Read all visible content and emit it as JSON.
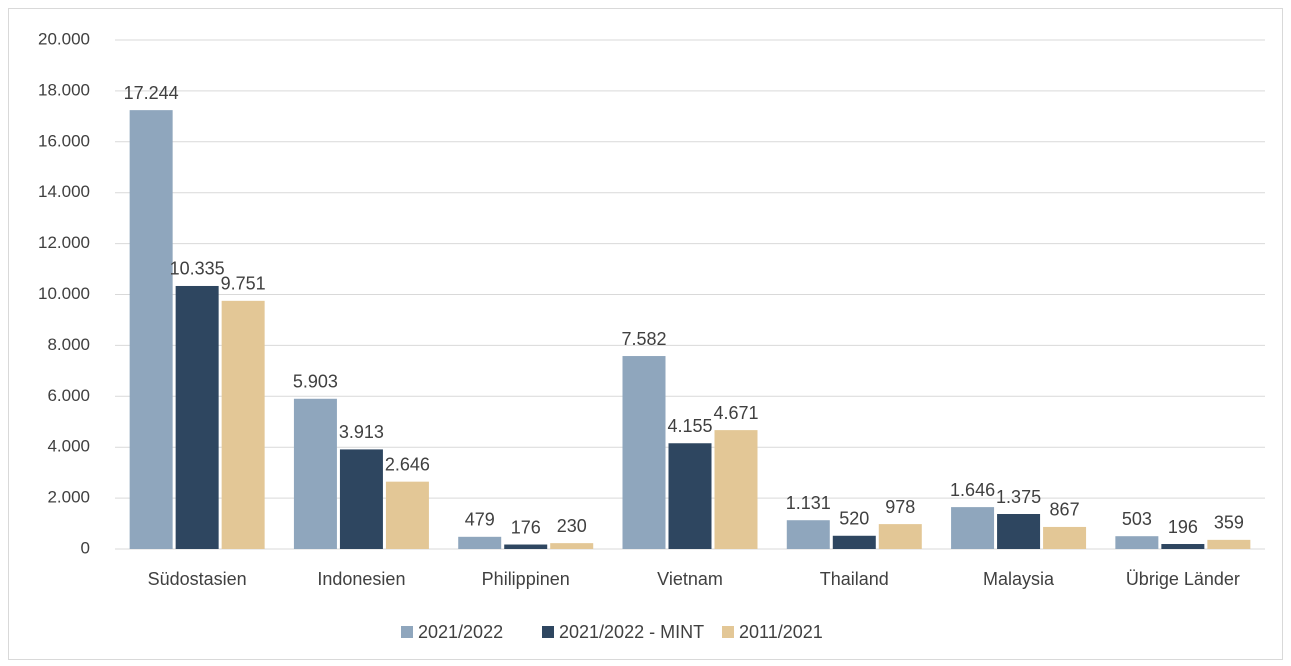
{
  "chart_data": {
    "type": "bar",
    "categories": [
      "Südostasien",
      "Indonesien",
      "Philippinen",
      "Vietnam",
      "Thailand",
      "Malaysia",
      "Übrige Länder"
    ],
    "series": [
      {
        "name": "2021/2022",
        "color": "#8fa6bd",
        "values": [
          17244,
          5903,
          479,
          7582,
          1131,
          1646,
          503
        ],
        "value_labels": [
          "17.244",
          "5.903",
          "479",
          "7.582",
          "1.131",
          "1.646",
          "503"
        ]
      },
      {
        "name": "2021/2022 - MINT",
        "color": "#2e4660",
        "values": [
          10335,
          3913,
          176,
          4155,
          520,
          1375,
          196
        ],
        "value_labels": [
          "10.335",
          "3.913",
          "176",
          "4.155",
          "520",
          "1.375",
          "196"
        ]
      },
      {
        "name": "2011/2021",
        "color": "#e3c796",
        "values": [
          9751,
          2646,
          230,
          4671,
          978,
          867,
          359
        ],
        "value_labels": [
          "9.751",
          "2.646",
          "230",
          "4.671",
          "978",
          "867",
          "359"
        ]
      }
    ],
    "ylim": [
      0,
      20000
    ],
    "yticks": [
      0,
      {
        "value": 2000,
        "label": "2.000"
      },
      {
        "value": 4000,
        "label": "4.000"
      },
      {
        "value": 6000,
        "label": "6.000"
      },
      {
        "value": 8000,
        "label": "8.000"
      },
      {
        "value": 10000,
        "label": "10.000"
      },
      {
        "value": 12000,
        "label": "12.000"
      },
      {
        "value": 14000,
        "label": "14.000"
      },
      {
        "value": 16000,
        "label": "16.000"
      },
      {
        "value": 18000,
        "label": "18.000"
      },
      {
        "value": 20000,
        "label": "20.000"
      }
    ],
    "grid": true,
    "legend": "bottom"
  }
}
